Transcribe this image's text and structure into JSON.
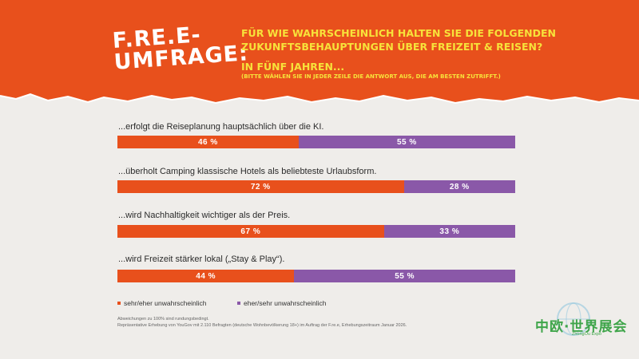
{
  "header": {
    "logo_line1": "F.RE.E-",
    "logo_line2": "UMFRAGE:",
    "question_line1": "FÜR WIE WAHRSCHEINLICH HALTEN SIE DIE FOLGENDEN",
    "question_line2": "ZUKUNFTSBEHAUPTUNGEN ÜBER FREIZEIT & REISEN?",
    "sub": "IN FÜNF JAHREN...",
    "hint": "(BITTE WÄHLEN SIE IN JEDER ZEILE DIE ANTWORT AUS, DIE AM BESTEN ZUTRIFFT.)"
  },
  "chart_data": {
    "type": "bar",
    "orientation": "horizontal-stacked",
    "categories": [
      "...erfolgt die Reiseplanung hauptsächlich über die KI.",
      "...überholt Camping klassische Hotels als beliebteste Urlaubsform.",
      "...wird Nachhaltigkeit wichtiger als der Preis.",
      "...wird Freizeit stärker lokal („Stay & Play“)."
    ],
    "series": [
      {
        "name": "sehr/eher unwahrscheinlich",
        "values": [
          46,
          72,
          67,
          44
        ],
        "labels": [
          "46 %",
          "72 %",
          "67 %",
          "44 %"
        ],
        "color": "#e8501c"
      },
      {
        "name": "eher/sehr unwahrscheinlich",
        "values": [
          55,
          28,
          33,
          55
        ],
        "labels": [
          "55 %",
          "28 %",
          "33 %",
          "55 %"
        ],
        "color": "#8a58a8"
      }
    ]
  },
  "notes": {
    "line1": "Abweichungen zu 100% sind rundungsbedingt.",
    "line2": "Repräsentative Erhebung von YouGov mit 2.110 Befragten (deutsche Wohnbevölkerung 18+) im Auftrag der F.re.e, Erhebungszeitraum Januar 2026."
  },
  "watermark": {
    "text": "中欧·世界展会",
    "sub": "ZhongOu Expo"
  }
}
